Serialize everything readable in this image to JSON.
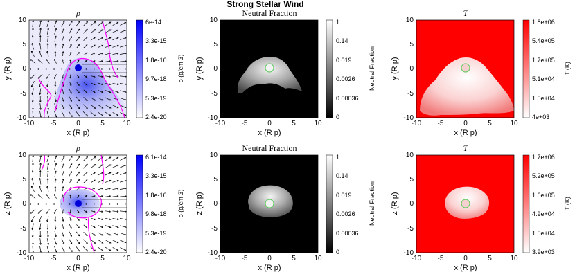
{
  "figure": {
    "title": "Strong Stellar Wind"
  },
  "colors": {
    "density_high": "#0000ff",
    "density_low": "#ffffff",
    "neutral_high": "#ffffff",
    "neutral_low": "#000000",
    "temperature_high": "#ff0000",
    "temperature_low": "#ffffff",
    "contour": "#ff00ff",
    "planet_ring": "#66cc66",
    "arrows": "#000000"
  },
  "chart_data": [
    {
      "id": "rho_xy",
      "type": "heatmap",
      "title": "ρ",
      "xlabel": "x (R p)",
      "ylabel": "y (R p)",
      "xlim": [
        -10,
        10
      ],
      "ylim": [
        -10,
        10
      ],
      "xticks": [
        "-10",
        "-5",
        "0",
        "5",
        "10"
      ],
      "yticks": [
        "-10",
        "-5",
        "0",
        "5",
        "10"
      ],
      "colorbar": {
        "label": "ρ (g/cm 3)",
        "ticks": [
          "6e-14",
          "3.3e-15",
          "1.8e-16",
          "9.7e-18",
          "5.3e-19",
          "2.4e-20"
        ]
      },
      "has_arrows": true,
      "has_contour": true,
      "colormap": "blue"
    },
    {
      "id": "nf_xy",
      "type": "heatmap",
      "title": "Neutral Fraction",
      "xlabel": "x (R p)",
      "ylabel": "y (R p)",
      "xlim": [
        -10,
        10
      ],
      "ylim": [
        -10,
        10
      ],
      "xticks": [
        "-10",
        "-5",
        "0",
        "5",
        "10"
      ],
      "yticks": [
        "-10",
        "-5",
        "0",
        "5",
        "10"
      ],
      "colorbar": {
        "label": "Neutral Fraction",
        "ticks": [
          "1",
          "0.14",
          "0.019",
          "0.0026",
          "0.00036",
          "0"
        ]
      },
      "has_arrows": false,
      "has_contour": false,
      "colormap": "gray"
    },
    {
      "id": "T_xy",
      "type": "heatmap",
      "title": "T",
      "xlabel": "x (R p)",
      "ylabel": "y (R p)",
      "xlim": [
        -10,
        10
      ],
      "ylim": [
        -10,
        10
      ],
      "xticks": [
        "-10",
        "-5",
        "0",
        "5",
        "10"
      ],
      "yticks": [
        "-10",
        "-5",
        "0",
        "5",
        "10"
      ],
      "colorbar": {
        "label": "T (K)",
        "ticks": [
          "1.8e+06",
          "5.4e+05",
          "1.7e+05",
          "5.1e+04",
          "1.5e+04",
          "4e+03"
        ]
      },
      "has_arrows": false,
      "has_contour": false,
      "colormap": "red"
    },
    {
      "id": "rho_xz",
      "type": "heatmap",
      "title": "ρ",
      "xlabel": "x (R p)",
      "ylabel": "z (R p)",
      "xlim": [
        -10,
        10
      ],
      "ylim": [
        -10,
        10
      ],
      "xticks": [
        "-10",
        "-5",
        "0",
        "5",
        "10"
      ],
      "yticks": [
        "-10",
        "-5",
        "0",
        "5",
        "10"
      ],
      "colorbar": {
        "label": "ρ (g/cm 3)",
        "ticks": [
          "6.1e-14",
          "3.3e-15",
          "1.8e-16",
          "9.8e-18",
          "5.3e-19",
          "2.4e-20"
        ]
      },
      "has_arrows": true,
      "has_contour": true,
      "colormap": "blue"
    },
    {
      "id": "nf_xz",
      "type": "heatmap",
      "title": "Neutral Fraction",
      "xlabel": "x (R p)",
      "ylabel": "z (R p)",
      "xlim": [
        -10,
        10
      ],
      "ylim": [
        -10,
        10
      ],
      "xticks": [
        "-10",
        "-5",
        "0",
        "5",
        "10"
      ],
      "yticks": [
        "-10",
        "-5",
        "0",
        "5",
        "10"
      ],
      "colorbar": {
        "label": "Neutral Fraction",
        "ticks": [
          "1",
          "0.14",
          "0.019",
          "0.0026",
          "0.00036",
          "0"
        ]
      },
      "has_arrows": false,
      "has_contour": false,
      "colormap": "gray"
    },
    {
      "id": "T_xz",
      "type": "heatmap",
      "title": "T",
      "xlabel": "x (R p)",
      "ylabel": "z (R p)",
      "xlim": [
        -10,
        10
      ],
      "ylim": [
        -10,
        10
      ],
      "xticks": [
        "-10",
        "-5",
        "0",
        "5",
        "10"
      ],
      "yticks": [
        "-10",
        "-5",
        "0",
        "5",
        "10"
      ],
      "colorbar": {
        "label": "T (K)",
        "ticks": [
          "1.7e+06",
          "5.2e+05",
          "1.6e+05",
          "4.9e+04",
          "1.5e+04",
          "3.9e+03"
        ]
      },
      "has_arrows": false,
      "has_contour": false,
      "colormap": "red"
    }
  ]
}
